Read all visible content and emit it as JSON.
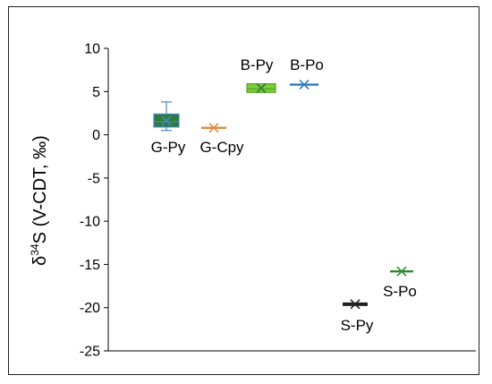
{
  "chart_data": {
    "type": "box",
    "ylabel_prefix": "δ",
    "ylabel_sup": "34",
    "ylabel_rest": "S (V-CDT, ‰)",
    "ylim": [
      -25,
      10
    ],
    "yticks": [
      10,
      5,
      0,
      -5,
      -10,
      -15,
      -20,
      -25
    ],
    "grid": false,
    "categories": [
      {
        "label": "G-Py",
        "kind": "box",
        "q1": 0.9,
        "q3": 2.4,
        "median": 1.5,
        "mean": 1.6,
        "whisker_low": 0.5,
        "whisker_high": 3.8,
        "fill": "#2e7d32",
        "stroke": "#4a86c5",
        "label_pos": "below"
      },
      {
        "label": "G-Cpy",
        "kind": "line",
        "value": 0.8,
        "mean": 0.8,
        "color": "#e08a3c",
        "label_pos": "below"
      },
      {
        "label": "B-Py",
        "kind": "box",
        "q1": 4.9,
        "q3": 5.9,
        "median": 5.3,
        "mean": 5.4,
        "fill": "#7ccf3a",
        "stroke": "#5aa02a",
        "label_pos": "above"
      },
      {
        "label": "B-Po",
        "kind": "line",
        "value": 5.8,
        "mean": 5.8,
        "color": "#2f78c4",
        "label_pos": "above"
      },
      {
        "label": "S-Py",
        "kind": "line",
        "value": -19.6,
        "mean": -19.6,
        "color": "#222222",
        "label_pos": "below"
      },
      {
        "label": "S-Po",
        "kind": "line",
        "value": -15.8,
        "mean": -15.8,
        "color": "#2e8b2e",
        "label_pos": "below"
      }
    ]
  }
}
